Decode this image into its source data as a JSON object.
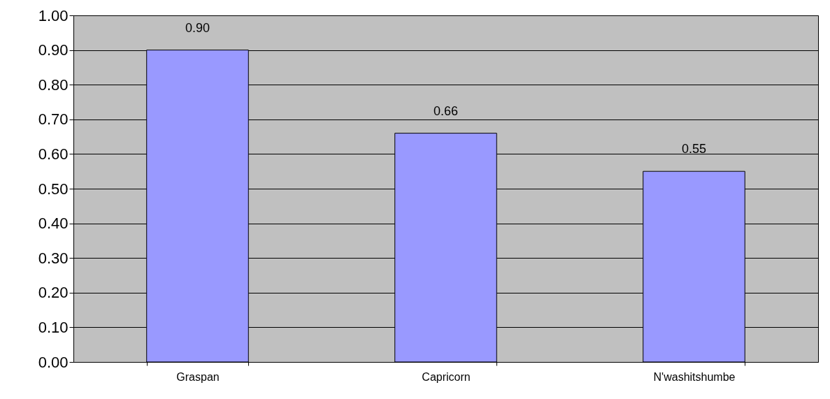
{
  "chart_data": {
    "type": "bar",
    "categories": [
      "Graspan",
      "Capricorn",
      "N'washitshumbe"
    ],
    "values": [
      0.9,
      0.66,
      0.55
    ],
    "value_labels": [
      "0.90",
      "0.66",
      "0.55"
    ],
    "color": "#9999ff",
    "ylim": [
      0,
      1
    ],
    "yticks": [
      {
        "value": 0,
        "label": "0.00"
      },
      {
        "value": 0.1,
        "label": "0.10"
      },
      {
        "value": 0.2,
        "label": "0.20"
      },
      {
        "value": 0.3,
        "label": "0.30"
      },
      {
        "value": 0.4,
        "label": "0.40"
      },
      {
        "value": 0.5,
        "label": "0.50"
      },
      {
        "value": 0.6,
        "label": "0.60"
      },
      {
        "value": 0.7,
        "label": "0.70"
      },
      {
        "value": 0.8,
        "label": "0.80"
      },
      {
        "value": 0.9,
        "label": "0.90"
      },
      {
        "value": 1,
        "label": "1.00"
      }
    ],
    "grid": "y"
  }
}
